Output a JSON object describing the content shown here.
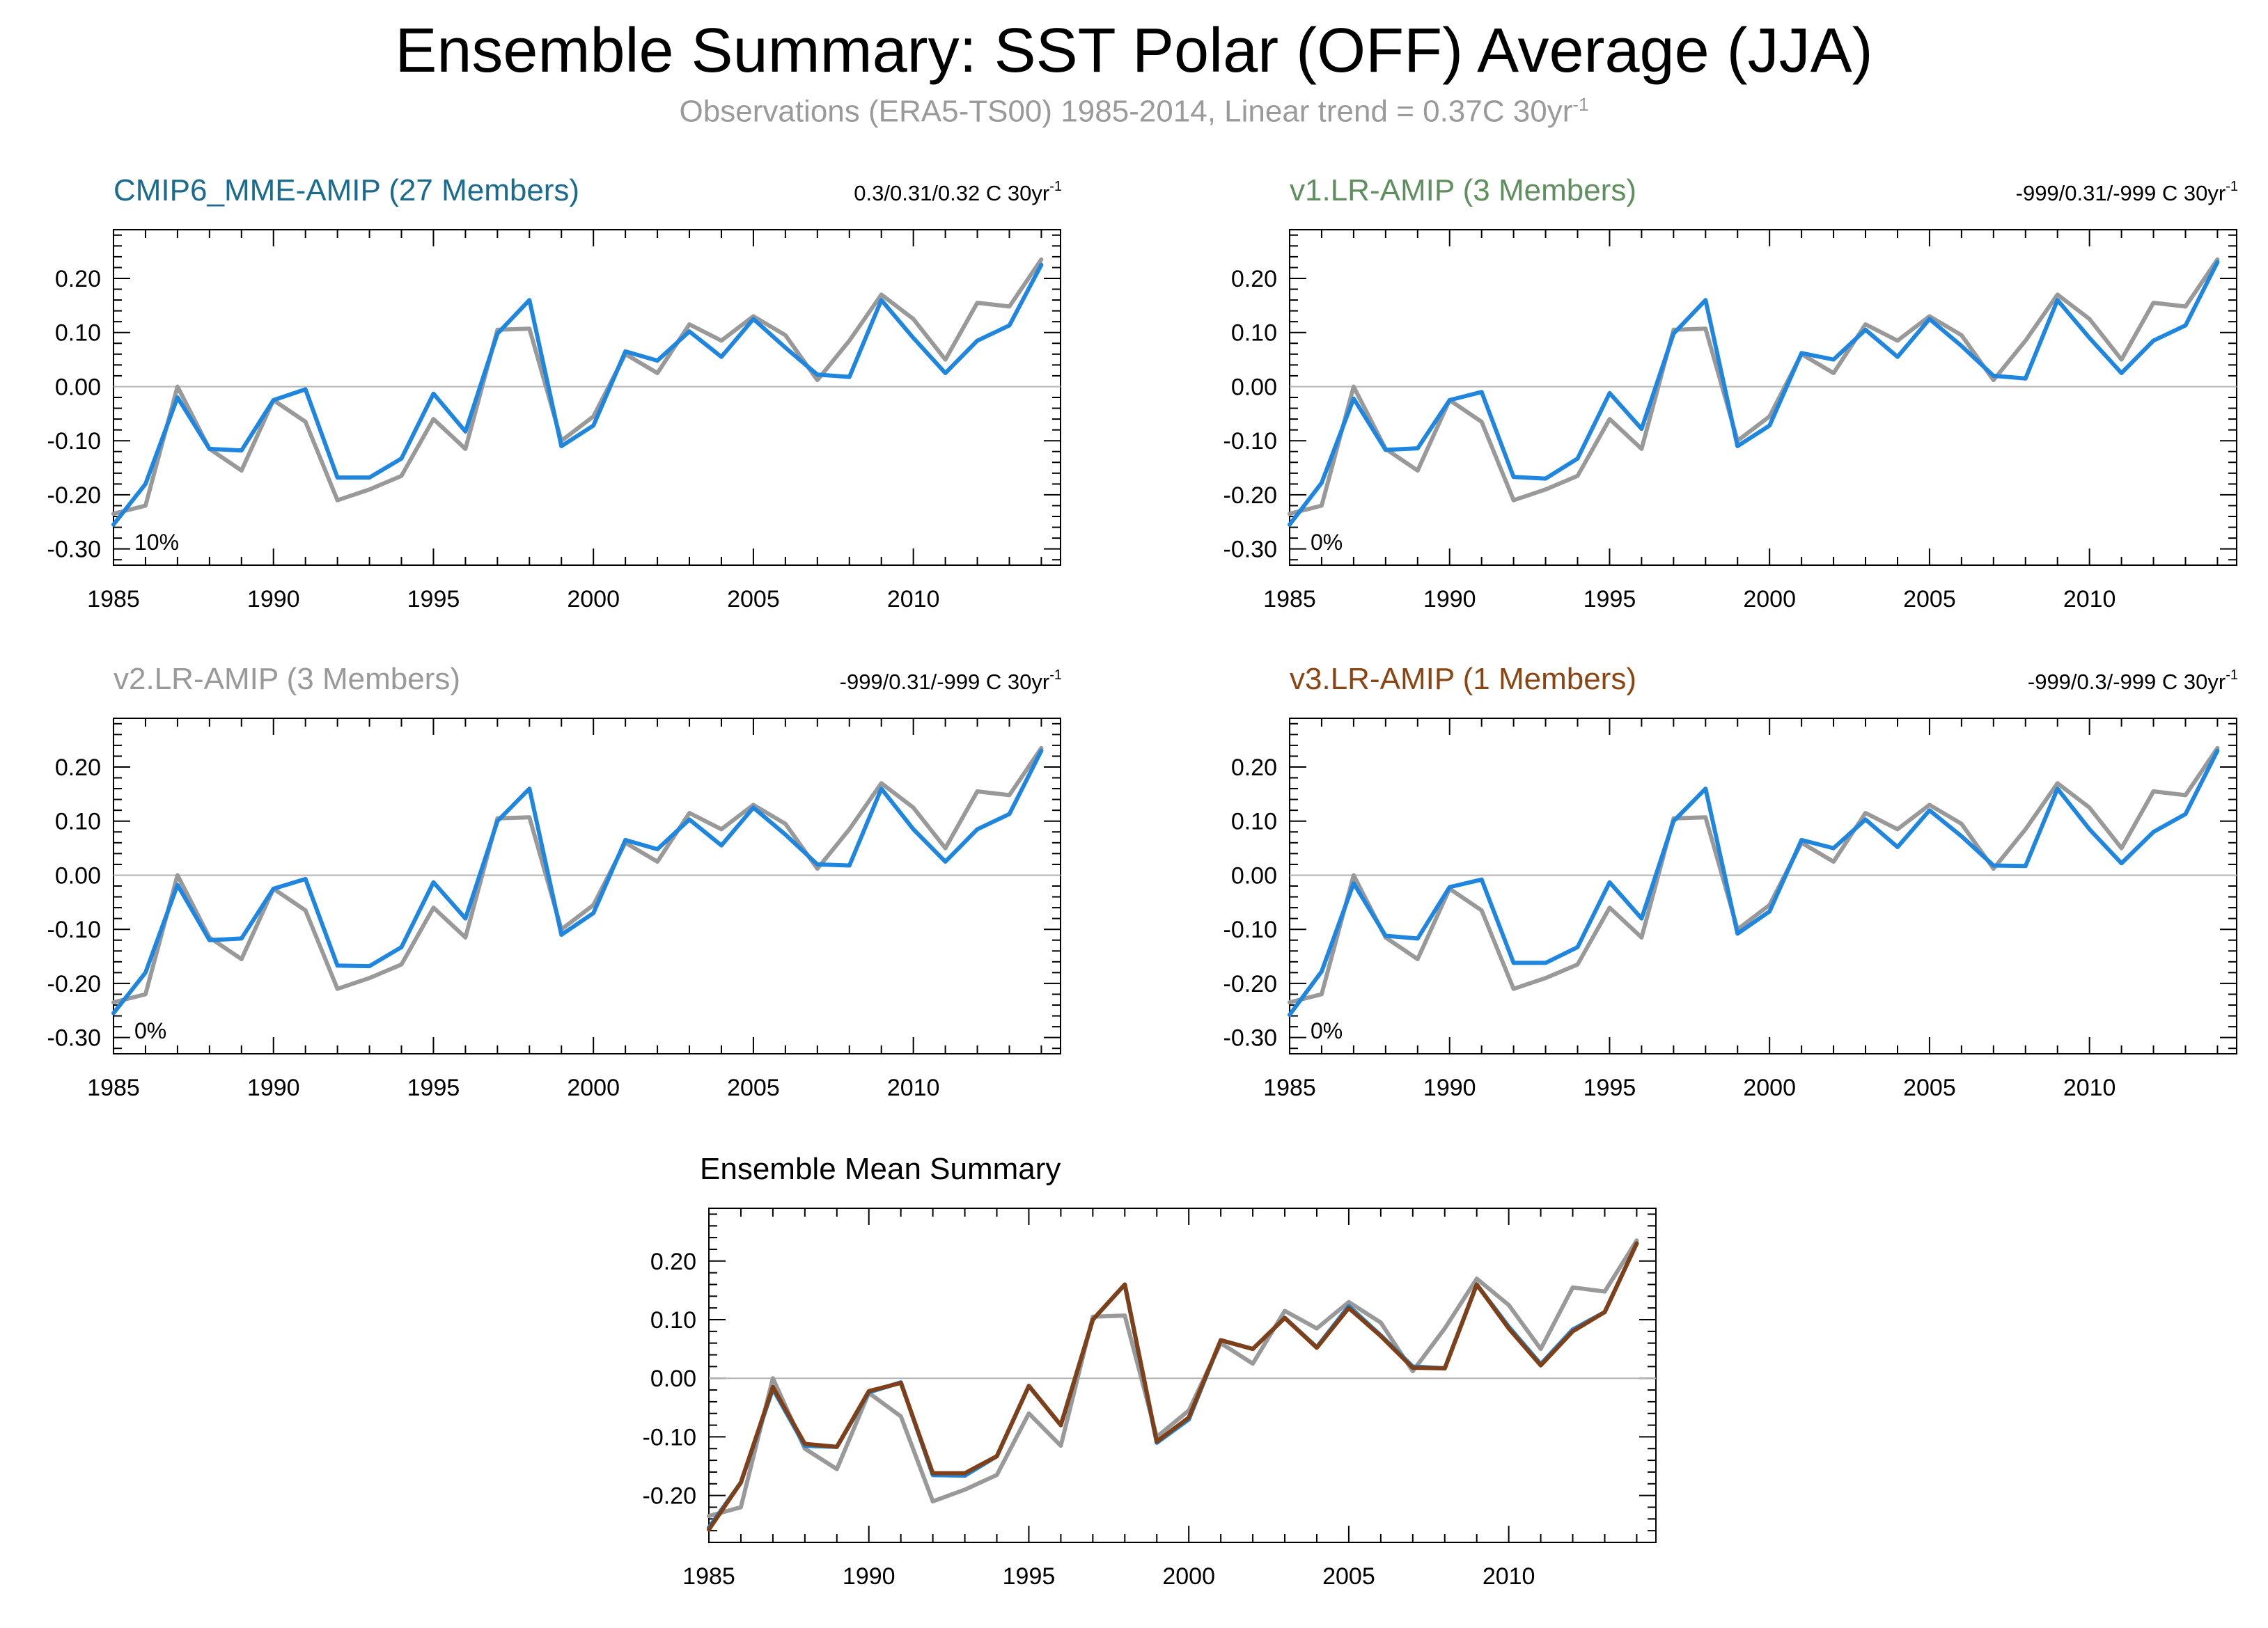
{
  "title": "Ensemble Summary: SST Polar (OFF) Average (JJA)",
  "subtitle": {
    "text": "Observations (ERA5-TS00) 1985-2014, Linear trend = 0.37C 30yr",
    "sup": "-1"
  },
  "colors": {
    "observations": "#999999",
    "model_panels": "#1f86e0",
    "ensemble_mean": "#7f4017",
    "zero_line": "#b3b3b3"
  },
  "chart_data": [
    {
      "type": "line",
      "title": "CMIP6_MME-AMIP (27 Members)",
      "title_color": "#1a6b8e",
      "trend_label": "0.3/0.31/0.32 C 30yr",
      "trend_sup": "-1",
      "annotation": "10%",
      "x": [
        1985,
        1986,
        1987,
        1988,
        1989,
        1990,
        1991,
        1992,
        1993,
        1994,
        1995,
        1996,
        1997,
        1998,
        1999,
        2000,
        2001,
        2002,
        2003,
        2004,
        2005,
        2006,
        2007,
        2008,
        2009,
        2010,
        2011,
        2012,
        2013,
        2014
      ],
      "xticks": [
        "1985",
        "1990",
        "1995",
        "2000",
        "2005",
        "2010"
      ],
      "yticks": [
        "0.20",
        "0.10",
        "0.00",
        "-0.10",
        "-0.20",
        "-0.30"
      ],
      "ylim": [
        -0.33,
        0.29
      ],
      "xlim": [
        1985,
        2014.6
      ],
      "series": [
        {
          "values": [
            -0.235,
            -0.22,
            0.0,
            -0.115,
            -0.155,
            -0.025,
            -0.065,
            -0.21,
            -0.19,
            -0.165,
            -0.06,
            -0.115,
            0.105,
            0.107,
            -0.1,
            -0.055,
            0.06,
            0.025,
            0.115,
            0.085,
            0.13,
            0.095,
            0.012,
            0.085,
            0.17,
            0.125,
            0.05,
            0.155,
            0.148,
            0.235
          ],
          "color": "#999999"
        },
        {
          "values": [
            -0.255,
            -0.18,
            -0.02,
            -0.115,
            -0.118,
            -0.025,
            -0.005,
            -0.168,
            -0.168,
            -0.133,
            -0.013,
            -0.083,
            0.098,
            0.16,
            -0.11,
            -0.072,
            0.065,
            0.048,
            0.102,
            0.055,
            0.125,
            0.072,
            0.022,
            0.018,
            0.16,
            0.09,
            0.025,
            0.085,
            0.113,
            0.225
          ],
          "color": "#1f86e0"
        }
      ]
    },
    {
      "type": "line",
      "title": "v1.LR-AMIP (3 Members)",
      "title_color": "#5f8f5f",
      "trend_label": "-999/0.31/-999 C 30yr",
      "trend_sup": "-1",
      "annotation": "0%",
      "x": [
        1985,
        1986,
        1987,
        1988,
        1989,
        1990,
        1991,
        1992,
        1993,
        1994,
        1995,
        1996,
        1997,
        1998,
        1999,
        2000,
        2001,
        2002,
        2003,
        2004,
        2005,
        2006,
        2007,
        2008,
        2009,
        2010,
        2011,
        2012,
        2013,
        2014
      ],
      "xticks": [
        "1985",
        "1990",
        "1995",
        "2000",
        "2005",
        "2010"
      ],
      "yticks": [
        "0.20",
        "0.10",
        "0.00",
        "-0.10",
        "-0.20",
        "-0.30"
      ],
      "ylim": [
        -0.33,
        0.29
      ],
      "xlim": [
        1985,
        2014.6
      ],
      "series": [
        {
          "values": [
            -0.235,
            -0.22,
            0.0,
            -0.115,
            -0.155,
            -0.025,
            -0.065,
            -0.21,
            -0.19,
            -0.165,
            -0.06,
            -0.115,
            0.105,
            0.107,
            -0.1,
            -0.055,
            0.06,
            0.025,
            0.115,
            0.085,
            0.13,
            0.095,
            0.012,
            0.085,
            0.17,
            0.125,
            0.05,
            0.155,
            0.148,
            0.235
          ],
          "color": "#999999"
        },
        {
          "values": [
            -0.255,
            -0.178,
            -0.022,
            -0.117,
            -0.114,
            -0.025,
            -0.01,
            -0.167,
            -0.17,
            -0.133,
            -0.012,
            -0.078,
            0.098,
            0.16,
            -0.11,
            -0.072,
            0.062,
            0.05,
            0.105,
            0.055,
            0.125,
            0.075,
            0.02,
            0.015,
            0.16,
            0.09,
            0.025,
            0.085,
            0.113,
            0.23
          ],
          "color": "#1f86e0"
        }
      ]
    },
    {
      "type": "line",
      "title": "v2.LR-AMIP (3 Members)",
      "title_color": "#999999",
      "trend_label": "-999/0.31/-999 C 30yr",
      "trend_sup": "-1",
      "annotation": "0%",
      "x": [
        1985,
        1986,
        1987,
        1988,
        1989,
        1990,
        1991,
        1992,
        1993,
        1994,
        1995,
        1996,
        1997,
        1998,
        1999,
        2000,
        2001,
        2002,
        2003,
        2004,
        2005,
        2006,
        2007,
        2008,
        2009,
        2010,
        2011,
        2012,
        2013,
        2014
      ],
      "xticks": [
        "1985",
        "1990",
        "1995",
        "2000",
        "2005",
        "2010"
      ],
      "yticks": [
        "0.20",
        "0.10",
        "0.00",
        "-0.10",
        "-0.20",
        "-0.30"
      ],
      "ylim": [
        -0.33,
        0.29
      ],
      "xlim": [
        1985,
        2014.6
      ],
      "series": [
        {
          "values": [
            -0.235,
            -0.22,
            0.0,
            -0.115,
            -0.155,
            -0.025,
            -0.065,
            -0.21,
            -0.19,
            -0.165,
            -0.06,
            -0.115,
            0.105,
            0.107,
            -0.1,
            -0.055,
            0.06,
            0.025,
            0.115,
            0.085,
            0.13,
            0.095,
            0.012,
            0.085,
            0.17,
            0.125,
            0.05,
            0.155,
            0.148,
            0.235
          ],
          "color": "#999999"
        },
        {
          "values": [
            -0.255,
            -0.18,
            -0.018,
            -0.12,
            -0.117,
            -0.025,
            -0.007,
            -0.167,
            -0.168,
            -0.133,
            -0.013,
            -0.08,
            0.1,
            0.16,
            -0.11,
            -0.07,
            0.065,
            0.048,
            0.103,
            0.055,
            0.125,
            0.075,
            0.02,
            0.018,
            0.16,
            0.085,
            0.025,
            0.085,
            0.113,
            0.23
          ],
          "color": "#1f86e0"
        }
      ]
    },
    {
      "type": "line",
      "title": "v3.LR-AMIP (1 Members)",
      "title_color": "#8b4513",
      "trend_label": "-999/0.3/-999 C 30yr",
      "trend_sup": "-1",
      "annotation": "0%",
      "x": [
        1985,
        1986,
        1987,
        1988,
        1989,
        1990,
        1991,
        1992,
        1993,
        1994,
        1995,
        1996,
        1997,
        1998,
        1999,
        2000,
        2001,
        2002,
        2003,
        2004,
        2005,
        2006,
        2007,
        2008,
        2009,
        2010,
        2011,
        2012,
        2013,
        2014
      ],
      "xticks": [
        "1985",
        "1990",
        "1995",
        "2000",
        "2005",
        "2010"
      ],
      "yticks": [
        "0.20",
        "0.10",
        "0.00",
        "-0.10",
        "-0.20",
        "-0.30"
      ],
      "ylim": [
        -0.33,
        0.29
      ],
      "xlim": [
        1985,
        2014.6
      ],
      "series": [
        {
          "values": [
            -0.235,
            -0.22,
            0.0,
            -0.115,
            -0.155,
            -0.025,
            -0.065,
            -0.21,
            -0.19,
            -0.165,
            -0.06,
            -0.115,
            0.105,
            0.107,
            -0.1,
            -0.055,
            0.06,
            0.025,
            0.115,
            0.085,
            0.13,
            0.095,
            0.012,
            0.085,
            0.17,
            0.125,
            0.05,
            0.155,
            0.148,
            0.235
          ],
          "color": "#999999"
        },
        {
          "values": [
            -0.258,
            -0.178,
            -0.015,
            -0.112,
            -0.117,
            -0.022,
            -0.008,
            -0.162,
            -0.162,
            -0.133,
            -0.013,
            -0.08,
            0.1,
            0.16,
            -0.108,
            -0.067,
            0.065,
            0.05,
            0.103,
            0.052,
            0.12,
            0.072,
            0.018,
            0.017,
            0.16,
            0.085,
            0.022,
            0.08,
            0.113,
            0.23
          ],
          "color": "#1f86e0"
        }
      ]
    },
    {
      "type": "line",
      "title": "Ensemble Mean Summary",
      "title_color": "#000000",
      "trend_label": "",
      "trend_sup": "",
      "annotation": "",
      "x": [
        1985,
        1986,
        1987,
        1988,
        1989,
        1990,
        1991,
        1992,
        1993,
        1994,
        1995,
        1996,
        1997,
        1998,
        1999,
        2000,
        2001,
        2002,
        2003,
        2004,
        2005,
        2006,
        2007,
        2008,
        2009,
        2010,
        2011,
        2012,
        2013,
        2014
      ],
      "xticks": [
        "1985",
        "1990",
        "1995",
        "2000",
        "2005",
        "2010"
      ],
      "yticks": [
        "0.20",
        "0.10",
        "0.00",
        "-0.10",
        "-0.20"
      ],
      "ylim": [
        -0.28,
        0.29
      ],
      "xlim": [
        1985,
        2014.6
      ],
      "series": [
        {
          "values": [
            -0.235,
            -0.22,
            0.0,
            -0.12,
            -0.155,
            -0.025,
            -0.065,
            -0.21,
            -0.19,
            -0.165,
            -0.06,
            -0.115,
            0.105,
            0.107,
            -0.1,
            -0.055,
            0.06,
            0.025,
            0.115,
            0.085,
            0.13,
            0.095,
            0.012,
            0.085,
            0.17,
            0.125,
            0.05,
            0.155,
            0.148,
            0.235
          ],
          "color": "#999999"
        },
        {
          "values": [
            -0.255,
            -0.178,
            -0.018,
            -0.115,
            -0.117,
            -0.024,
            -0.007,
            -0.165,
            -0.166,
            -0.133,
            -0.013,
            -0.08,
            0.1,
            0.16,
            -0.11,
            -0.07,
            0.065,
            0.05,
            0.103,
            0.053,
            0.123,
            0.073,
            0.02,
            0.017,
            0.16,
            0.088,
            0.024,
            0.083,
            0.113,
            0.23
          ],
          "color": "#1f86e0"
        },
        {
          "values": [
            -0.255,
            -0.178,
            -0.018,
            -0.115,
            -0.117,
            -0.024,
            -0.007,
            -0.165,
            -0.166,
            -0.133,
            -0.013,
            -0.08,
            0.1,
            0.16,
            -0.11,
            -0.07,
            0.065,
            0.05,
            0.103,
            0.053,
            0.123,
            0.073,
            0.02,
            0.017,
            0.16,
            0.088,
            0.024,
            0.083,
            0.113,
            0.23
          ],
          "color": "#1f86e0"
        },
        {
          "values": [
            -0.258,
            -0.178,
            -0.015,
            -0.112,
            -0.117,
            -0.022,
            -0.008,
            -0.162,
            -0.162,
            -0.133,
            -0.013,
            -0.08,
            0.1,
            0.16,
            -0.108,
            -0.067,
            0.065,
            0.05,
            0.103,
            0.052,
            0.12,
            0.072,
            0.018,
            0.017,
            0.16,
            0.085,
            0.022,
            0.08,
            0.113,
            0.23
          ],
          "color": "#7f4017"
        }
      ]
    }
  ]
}
